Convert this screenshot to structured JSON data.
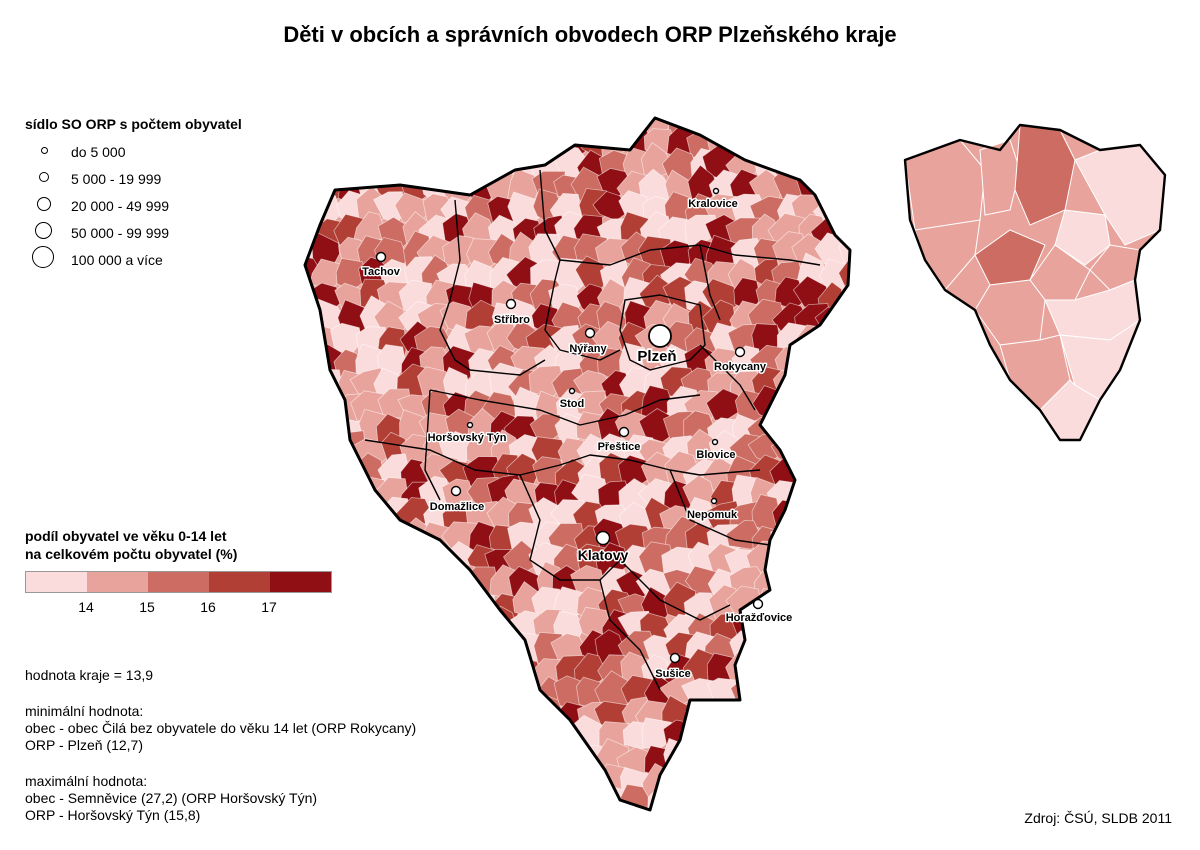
{
  "title": "Děti v obcích a správních obvodech ORP Plzeňského kraje",
  "seat_legend": {
    "title": "sídlo SO ORP s počtem obyvatel",
    "items": [
      "do 5 000",
      "5 000 - 19 999",
      "20 000 - 49 999",
      "50 000 - 99 999",
      "100 000 a více"
    ]
  },
  "share_legend": {
    "title_line1": "podíl obyvatel ve věku 0-14 let",
    "title_line2": "na celkovém počtu obyvatel (%)",
    "colors": [
      "#fbdcdc",
      "#e8a49c",
      "#cc6c62",
      "#b23f35",
      "#8f0f15"
    ],
    "ticks": [
      "14",
      "15",
      "16",
      "17"
    ]
  },
  "region_value": "hodnota kraje = 13,9",
  "minimum": {
    "heading": "minimální hodnota:",
    "municipality": "obec - obec Čilá bez obyvatele do věku 14 let (ORP Rokycany)",
    "orp": "ORP - Plzeň (12,7)"
  },
  "maximum": {
    "heading": "maximální hodnota:",
    "municipality": "obec - Semněvice (27,2) (ORP Horšovský Týn)",
    "orp": "ORP - Horšovský Týn (15,8)"
  },
  "source": "Zdroj: ČSÚ, SLDB 2011",
  "cities": [
    {
      "name": "Tachov",
      "size_class": 2
    },
    {
      "name": "Stříbro",
      "size_class": 2
    },
    {
      "name": "Kralovice",
      "size_class": 1
    },
    {
      "name": "Nýřany",
      "size_class": 2
    },
    {
      "name": "Plzeň",
      "size_class": 5
    },
    {
      "name": "Rokycany",
      "size_class": 2
    },
    {
      "name": "Stod",
      "size_class": 1
    },
    {
      "name": "Horšovský Týn",
      "size_class": 1
    },
    {
      "name": "Přeštice",
      "size_class": 2
    },
    {
      "name": "Blovice",
      "size_class": 1
    },
    {
      "name": "Domažlice",
      "size_class": 2
    },
    {
      "name": "Nepomuk",
      "size_class": 1
    },
    {
      "name": "Klatovy",
      "size_class": 3
    },
    {
      "name": "Horažďovice",
      "size_class": 2
    },
    {
      "name": "Sušice",
      "size_class": 2
    }
  ]
}
